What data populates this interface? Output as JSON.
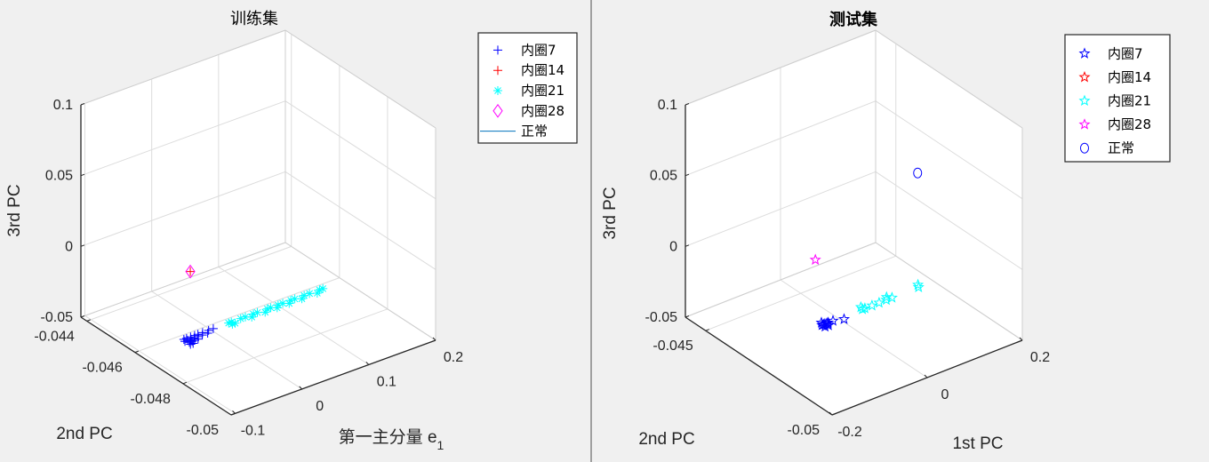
{
  "chart_data": [
    {
      "type": "scatter3d",
      "title": "训练集",
      "title_bold": false,
      "xlabel": "第一主分量 e",
      "xlabel_sub": "1",
      "ylabel": "2nd PC",
      "zlabel": "3rd PC",
      "xlim": [
        -0.106,
        0.2
      ],
      "ylim": [
        -0.05,
        -0.04375
      ],
      "zlim": [
        -0.05,
        0.1
      ],
      "xticks": [
        -0.1,
        0,
        0.1,
        0.2
      ],
      "xtick_labels": [
        "-0.1",
        "0",
        "0.1",
        "0.2"
      ],
      "yticks": [
        -0.05,
        -0.048,
        -0.046,
        -0.044
      ],
      "ytick_labels": [
        "-0.05",
        "-0.048",
        "-0.046",
        "-0.044"
      ],
      "zticks": [
        -0.05,
        0,
        0.05,
        0.1
      ],
      "ztick_labels": [
        "-0.05",
        "0",
        "0.05",
        "0.1"
      ],
      "grid": true,
      "legend_position": "top-right",
      "series": [
        {
          "name": "内圈7",
          "marker": "plus",
          "color": "#0000ff",
          "points": [
            [
              -0.042,
              -0.0463,
              -0.05
            ],
            [
              -0.041,
              -0.0465,
              -0.05
            ],
            [
              -0.04,
              -0.0462,
              -0.05
            ],
            [
              -0.039,
              -0.0464,
              -0.05
            ],
            [
              -0.038,
              -0.0463,
              -0.05
            ],
            [
              -0.037,
              -0.0465,
              -0.05
            ],
            [
              -0.036,
              -0.0462,
              -0.05
            ],
            [
              -0.035,
              -0.0464,
              -0.05
            ],
            [
              -0.033,
              -0.0463,
              -0.05
            ],
            [
              -0.031,
              -0.0464,
              -0.05
            ],
            [
              -0.03,
              -0.0462,
              -0.05
            ],
            [
              -0.028,
              -0.0463,
              -0.05
            ],
            [
              -0.026,
              -0.0464,
              -0.05
            ],
            [
              -0.024,
              -0.0462,
              -0.05
            ],
            [
              -0.022,
              -0.0463,
              -0.05
            ],
            [
              -0.019,
              -0.0462,
              -0.05
            ],
            [
              -0.016,
              -0.0463,
              -0.05
            ],
            [
              -0.012,
              -0.0462,
              -0.05
            ],
            [
              -0.008,
              -0.0463,
              -0.05
            ],
            [
              -0.003,
              -0.0462,
              -0.05
            ],
            [
              0.004,
              -0.0462,
              -0.05
            ]
          ]
        },
        {
          "name": "内圈14",
          "marker": "plus",
          "color": "#ff0000",
          "points": [
            [
              -0.034,
              -0.0463,
              -0.002
            ]
          ]
        },
        {
          "name": "内圈21",
          "marker": "asterisk",
          "color": "#00ffff",
          "points": [
            [
              0.027,
              -0.0462,
              -0.05
            ],
            [
              0.029,
              -0.0463,
              -0.05
            ],
            [
              0.031,
              -0.0462,
              -0.05
            ],
            [
              0.033,
              -0.0463,
              -0.05
            ],
            [
              0.045,
              -0.0462,
              -0.05
            ],
            [
              0.052,
              -0.0462,
              -0.05
            ],
            [
              0.058,
              -0.0463,
              -0.05
            ],
            [
              0.064,
              -0.0462,
              -0.05
            ],
            [
              0.07,
              -0.0462,
              -0.05
            ],
            [
              0.078,
              -0.0463,
              -0.05
            ],
            [
              0.085,
              -0.0462,
              -0.05
            ],
            [
              0.09,
              -0.0462,
              -0.05
            ],
            [
              0.096,
              -0.0463,
              -0.05
            ],
            [
              0.101,
              -0.0462,
              -0.05
            ],
            [
              0.108,
              -0.0462,
              -0.05
            ],
            [
              0.114,
              -0.0463,
              -0.05
            ],
            [
              0.12,
              -0.0462,
              -0.05
            ],
            [
              0.126,
              -0.0462,
              -0.05
            ],
            [
              0.133,
              -0.0463,
              -0.05
            ],
            [
              0.14,
              -0.0462,
              -0.05
            ],
            [
              0.148,
              -0.0462,
              -0.05
            ],
            [
              0.156,
              -0.0463,
              -0.05
            ],
            [
              0.163,
              -0.0462,
              -0.05
            ],
            [
              0.168,
              -0.0462,
              -0.05
            ]
          ]
        },
        {
          "name": "内圈28",
          "marker": "diamond",
          "color": "#ff00ff",
          "points": [
            [
              -0.034,
              -0.0463,
              -0.002
            ]
          ]
        },
        {
          "name": "正常",
          "marker": "line",
          "color": "#0072bd",
          "points": []
        }
      ]
    },
    {
      "type": "scatter3d",
      "title": "测试集",
      "title_bold": true,
      "xlabel": "1st PC",
      "xlabel_sub": "",
      "ylabel": "2nd PC",
      "zlabel": "3rd PC",
      "xlim": [
        -0.2,
        0.2
      ],
      "ylim": [
        -0.05,
        -0.0442
      ],
      "zlim": [
        -0.05,
        0.1
      ],
      "xticks": [
        -0.2,
        0,
        0.2
      ],
      "xtick_labels": [
        "-0.2",
        "0",
        "0.2"
      ],
      "yticks": [
        -0.05,
        -0.045
      ],
      "ytick_labels": [
        "-0.05",
        "-0.045"
      ],
      "zticks": [
        -0.05,
        0,
        0.05,
        0.1
      ],
      "ztick_labels": [
        "-0.05",
        "0",
        "0.05",
        "0.1"
      ],
      "grid": true,
      "legend_position": "top-right",
      "series": [
        {
          "name": "内圈7",
          "marker": "pentagram",
          "color": "#0000ff",
          "points": [
            [
              -0.035,
              -0.0465,
              -0.05
            ],
            [
              -0.034,
              -0.0466,
              -0.05
            ],
            [
              -0.032,
              -0.0465,
              -0.05
            ],
            [
              -0.031,
              -0.0464,
              -0.05
            ],
            [
              -0.029,
              -0.0465,
              -0.05
            ],
            [
              -0.027,
              -0.0466,
              -0.05
            ],
            [
              -0.025,
              -0.0465,
              -0.05
            ],
            [
              -0.022,
              -0.0465,
              -0.05
            ],
            [
              -0.012,
              -0.0465,
              -0.05
            ],
            [
              0.006,
              -0.0466,
              -0.05
            ]
          ]
        },
        {
          "name": "内圈14",
          "marker": "pentagram",
          "color": "#ff0000",
          "points": []
        },
        {
          "name": "内圈21",
          "marker": "pentagram",
          "color": "#00ffff",
          "points": [
            [
              0.05,
              -0.0465,
              -0.05
            ],
            [
              0.052,
              -0.0464,
              -0.05
            ],
            [
              0.055,
              -0.0465,
              -0.05
            ],
            [
              0.07,
              -0.0465,
              -0.05
            ],
            [
              0.085,
              -0.0465,
              -0.05
            ],
            [
              0.1,
              -0.0465,
              -0.05
            ],
            [
              0.106,
              -0.0464,
              -0.05
            ],
            [
              0.112,
              -0.0465,
              -0.05
            ],
            [
              0.168,
              -0.0465,
              -0.05
            ],
            [
              0.172,
              -0.0464,
              -0.05
            ]
          ]
        },
        {
          "name": "内圈28",
          "marker": "pentagram",
          "color": "#ff00ff",
          "points": [
            [
              -0.049,
              -0.0465,
              -0.002
            ]
          ]
        },
        {
          "name": "正常",
          "marker": "circle",
          "color": "#0000ff",
          "points": [
            [
              0.166,
              -0.0465,
              0.031
            ]
          ]
        }
      ]
    }
  ]
}
